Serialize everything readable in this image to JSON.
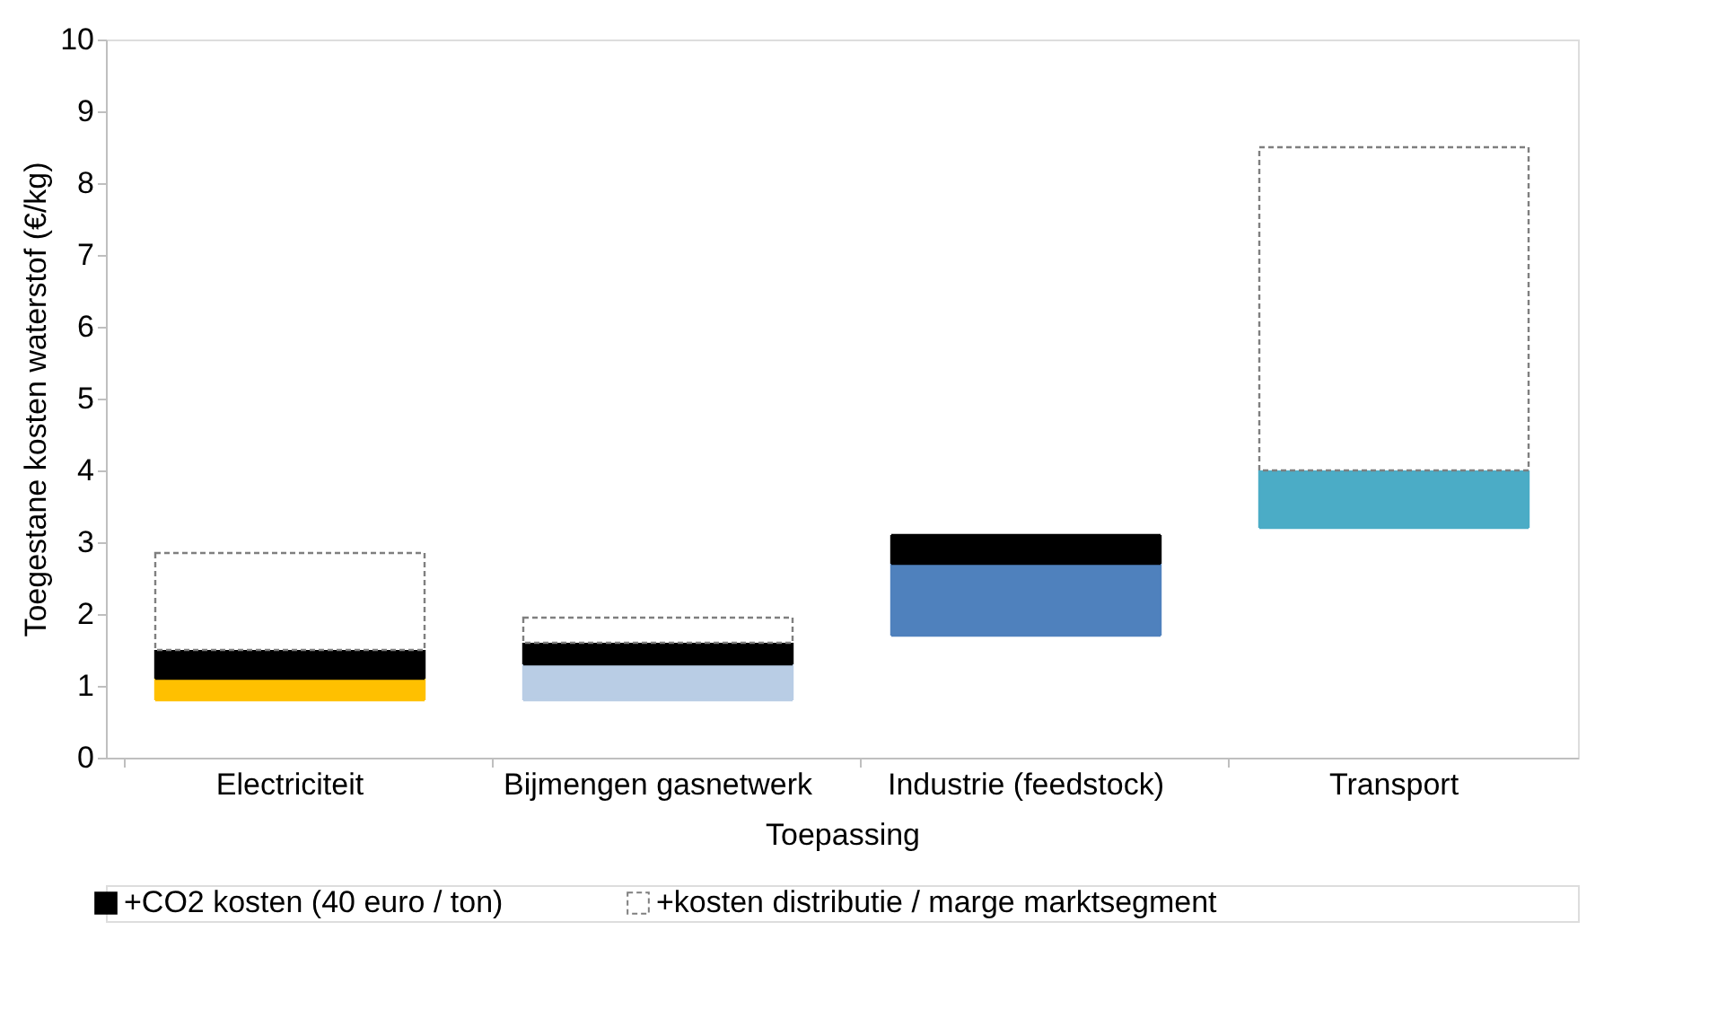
{
  "chart_data": {
    "type": "bar",
    "xlabel": "Toepassing",
    "ylabel": "Toegestane kosten waterstof (€/kg)",
    "categories": [
      "Electriciteit",
      "Bijmengen gasnetwerk",
      "Industrie (feedstock)",
      "Transport"
    ],
    "series": [
      {
        "colors": [
          "#ffc000",
          "#b9cde5",
          "#4f81bd",
          "#4bacc6"
        ],
        "base": [
          0.8,
          0.8,
          1.7,
          3.2
        ],
        "values": [
          0.3,
          0.5,
          1.0,
          0.8
        ]
      },
      {
        "name": "+CO2 kosten (40 euro / ton)",
        "color": "#000000",
        "base": [
          1.1,
          1.3,
          2.7,
          null
        ],
        "values": [
          0.4,
          0.3,
          0.4,
          null
        ]
      },
      {
        "name": "+kosten distributie / marge marktsegment",
        "color": "#ffffff",
        "line_style": "dashed",
        "base": [
          1.5,
          1.6,
          null,
          4.0
        ],
        "values": [
          1.35,
          0.35,
          null,
          4.5
        ]
      }
    ],
    "ylim": [
      0,
      10
    ],
    "yticks": [
      0,
      1,
      2,
      3,
      4,
      5,
      6,
      7,
      8,
      9,
      10
    ],
    "grid": false,
    "legend": "bottom"
  }
}
